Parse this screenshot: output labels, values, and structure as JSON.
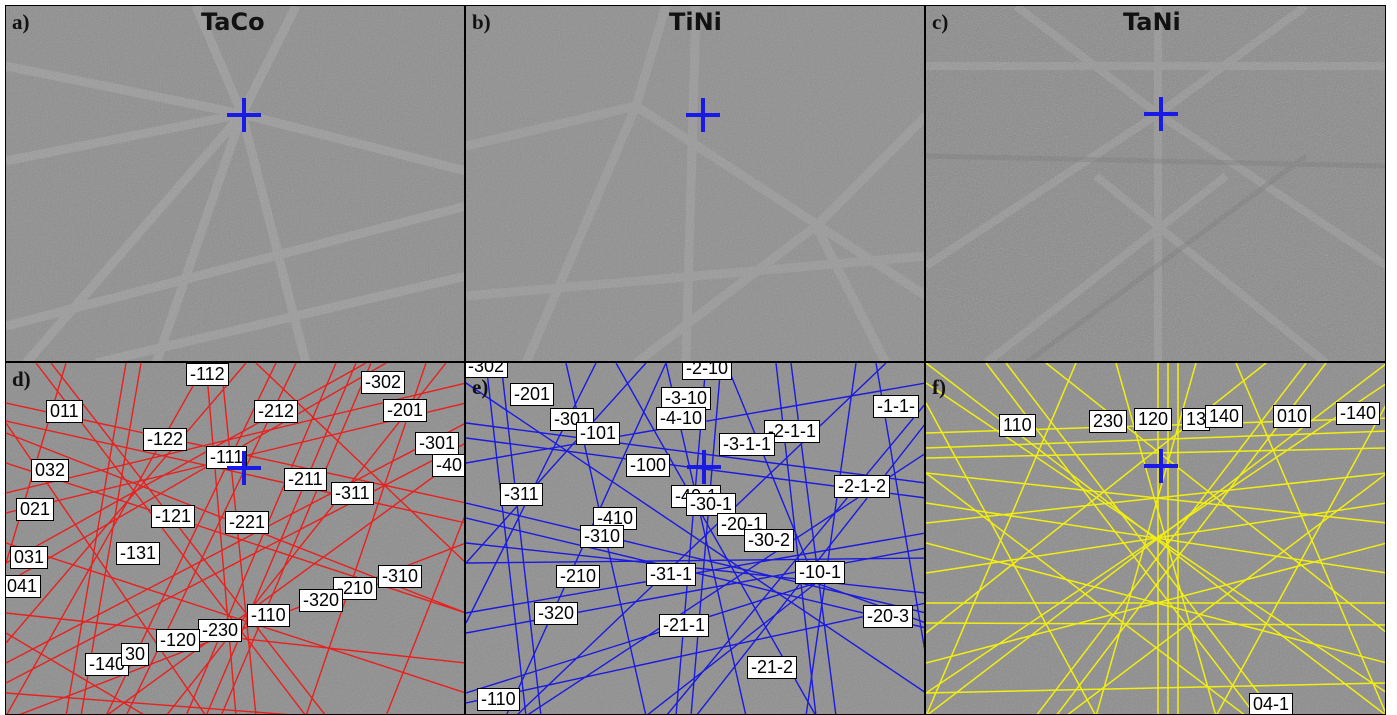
{
  "panels_top": [
    {
      "letter": "a)",
      "title": "TaCo"
    },
    {
      "letter": "b)",
      "title": "TiNi"
    },
    {
      "letter": "c)",
      "title": "TaNi"
    }
  ],
  "panels_bottom": [
    {
      "letter": "d)",
      "line_color": "#e8201e",
      "labels": [
        "-112",
        "-302",
        "011",
        "-212",
        "-201",
        "-122",
        "-301",
        "-111",
        "032",
        "-40",
        "-211",
        "-311",
        "021",
        "-121",
        "-221",
        "031",
        "-131",
        "-310",
        "-210",
        "041",
        "-320",
        "-110",
        "-230",
        "-120",
        "-140",
        "30"
      ]
    },
    {
      "letter": "e)",
      "line_color": "#1a1ae0",
      "labels": [
        "-302",
        "-2-10",
        "-201",
        "-3-10",
        "-1-1-",
        "-301",
        "-4-10",
        "-101",
        "-2-1-1",
        "-3-1-1",
        "-100",
        "-2-1-2",
        "-311",
        "-40-1",
        "-30-1",
        "-410",
        "-20-1",
        "-310",
        "-30-2",
        "-210",
        "-31-1",
        "-10-1",
        "-320",
        "-20-3",
        "-21-1",
        "-21-2",
        "-110"
      ]
    },
    {
      "letter": "f)",
      "line_color": "#f2ef10",
      "labels": [
        "110",
        "230",
        "120",
        "13",
        "140",
        "010",
        "-140",
        "04-1"
      ]
    }
  ]
}
